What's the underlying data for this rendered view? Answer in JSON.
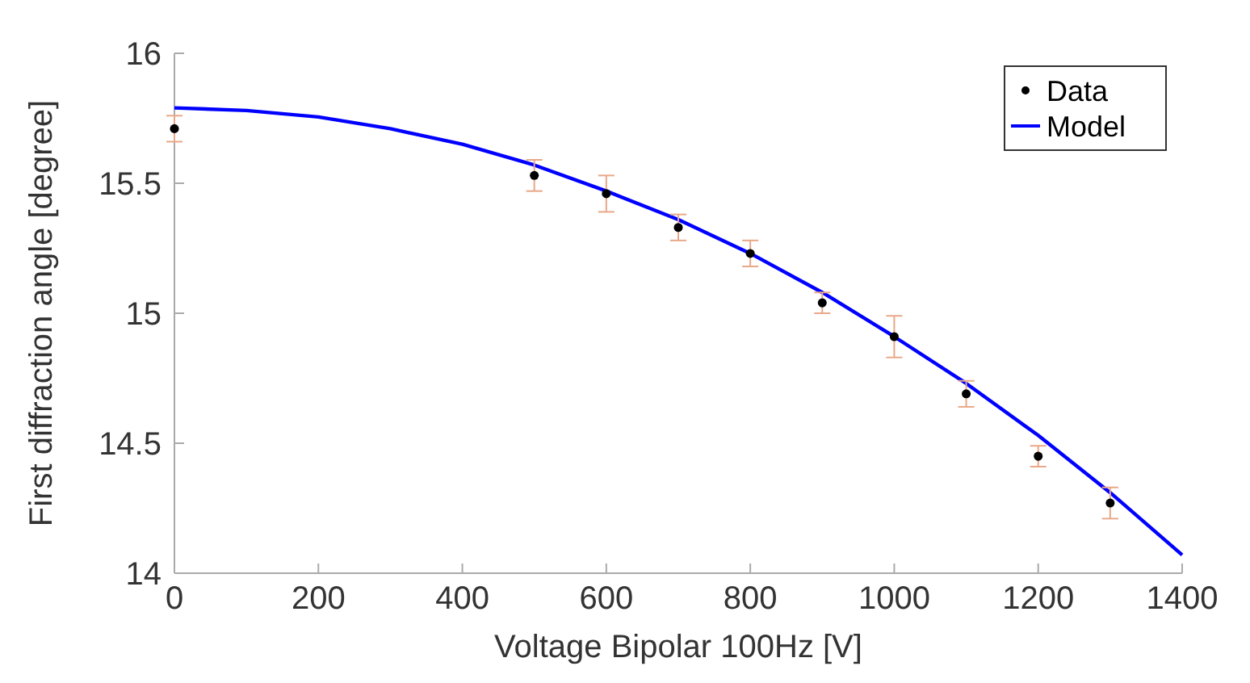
{
  "chart_data": {
    "type": "scatter",
    "xlabel": "Voltage Bipolar 100Hz [V]",
    "ylabel": "First diffraction angle [degree]",
    "xlim": [
      0,
      1400
    ],
    "xticks": [
      0,
      200,
      400,
      600,
      800,
      1000,
      1200,
      1400
    ],
    "ylim": [
      14,
      16
    ],
    "yticks": [
      14,
      14.5,
      15,
      15.5,
      16
    ],
    "grid": false,
    "legend": "top right",
    "series": [
      {
        "name": "Data",
        "color": "#000000",
        "marker": "circle",
        "x": [
          0,
          500,
          600,
          700,
          800,
          900,
          1000,
          1100,
          1200,
          1300
        ],
        "values": [
          15.71,
          15.53,
          15.46,
          15.33,
          15.23,
          15.04,
          14.91,
          14.69,
          14.45,
          14.27
        ],
        "errors": [
          0.05,
          0.06,
          0.07,
          0.05,
          0.05,
          0.04,
          0.08,
          0.05,
          0.04,
          0.06
        ]
      },
      {
        "name": "Model",
        "type": "line",
        "color": "#0000ff",
        "marker": "none",
        "line_style": "solid",
        "x": [
          0,
          100,
          200,
          300,
          400,
          500,
          600,
          700,
          800,
          900,
          1000,
          1100,
          1200,
          1300,
          1400
        ],
        "values": [
          15.79,
          15.78,
          15.755,
          15.71,
          15.65,
          15.57,
          15.47,
          15.36,
          15.23,
          15.08,
          14.91,
          14.73,
          14.53,
          14.31,
          14.07
        ]
      }
    ]
  }
}
